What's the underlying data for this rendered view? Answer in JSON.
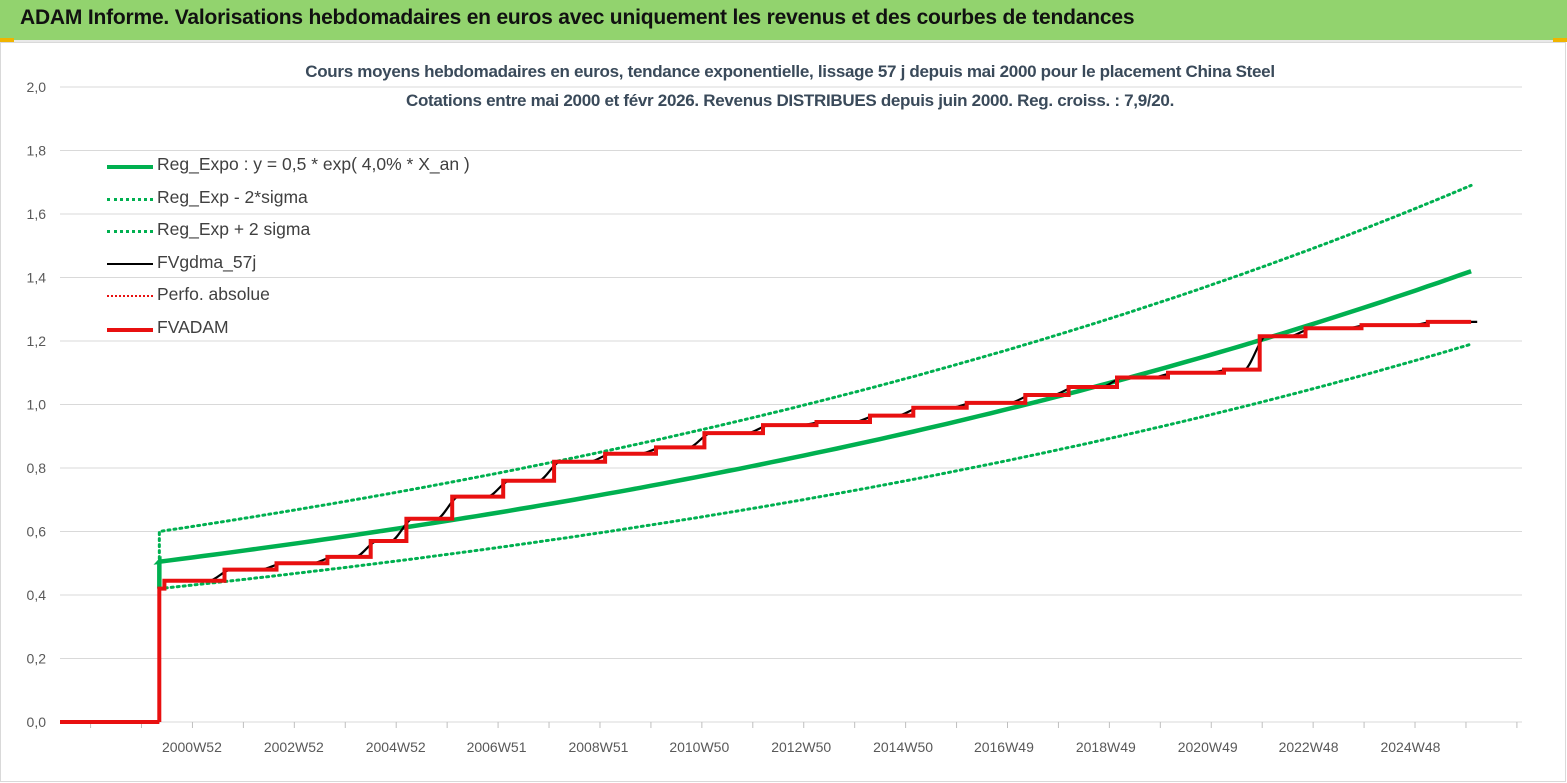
{
  "banner": {
    "title": "ADAM Informe. Valorisations hebdomadaires en euros avec uniquement les revenus et des courbes de tendances"
  },
  "colors": {
    "banner_bg": "#92d36e",
    "reg_expo": "#00b050",
    "fvgdma": "#000000",
    "fvadam": "#e81010",
    "perfo": "#e81010",
    "gridline": "#d9d9d9",
    "axis_text": "#595959"
  },
  "chart_data": {
    "type": "line",
    "title_line1": "Cours moyens hebdomadaires en euros, tendance exponentielle, lissage 57 j depuis mai 2000 pour le placement China Steel",
    "title_line2": "Cotations entre mai 2000 et févr 2026. Revenus DISTRIBUES depuis juin 2000. Reg. croiss. : 7,9/20.",
    "y_ticks": [
      "0,0",
      "0,2",
      "0,4",
      "0,6",
      "0,8",
      "1,0",
      "1,2",
      "1,4",
      "1,6",
      "1,8",
      "2,0"
    ],
    "ylim": [
      0,
      2.0
    ],
    "x_range": [
      1998.4,
      2027.1
    ],
    "x_ticks": [
      {
        "label": "2000W52",
        "x": 2000.99
      },
      {
        "label": "2002W52",
        "x": 2002.99
      },
      {
        "label": "2004W52",
        "x": 2004.99
      },
      {
        "label": "2006W51",
        "x": 2006.97
      },
      {
        "label": "2008W51",
        "x": 2008.97
      },
      {
        "label": "2010W50",
        "x": 2010.95
      },
      {
        "label": "2012W50",
        "x": 2012.95
      },
      {
        "label": "2014W50",
        "x": 2014.95
      },
      {
        "label": "2016W49",
        "x": 2016.93
      },
      {
        "label": "2018W49",
        "x": 2018.93
      },
      {
        "label": "2020W49",
        "x": 2020.93
      },
      {
        "label": "2022W48",
        "x": 2022.91
      },
      {
        "label": "2024W48",
        "x": 2024.91
      }
    ],
    "grid": true,
    "legend_position": "top-left",
    "start_x": 2000.35,
    "end_x": 2026.1,
    "series": [
      {
        "name": "Reg_Expo : y = 0,5 * exp( 4,0% *  X_an )",
        "style": "solid-thick",
        "color": "#00b050",
        "points": [
          [
            2000.35,
            0.505
          ],
          [
            2026.1,
            1.42
          ]
        ]
      },
      {
        "name": "Reg_Exp - 2*sigma",
        "style": "dotted",
        "color": "#00b050",
        "points": [
          [
            2000.35,
            0.42
          ],
          [
            2026.1,
            1.19
          ]
        ]
      },
      {
        "name": "Reg_Exp + 2 sigma",
        "style": "dotted",
        "color": "#00b050",
        "points": [
          [
            2000.35,
            0.6
          ],
          [
            2026.1,
            1.69
          ]
        ]
      },
      {
        "name": "FVgdma_57j",
        "style": "solid",
        "color": "#000000"
      },
      {
        "name": "Perfo. absolue",
        "style": "dotted-thin",
        "color": "#e81010"
      },
      {
        "name": "FVADAM",
        "style": "solid-thick",
        "color": "#e81010",
        "pre": [
          [
            1998.4,
            0.0
          ],
          [
            2000.35,
            0.0
          ]
        ],
        "steps": [
          [
            2000.35,
            0.42
          ],
          [
            2000.45,
            0.445
          ],
          [
            2001.63,
            0.48
          ],
          [
            2002.65,
            0.5
          ],
          [
            2003.65,
            0.52
          ],
          [
            2004.5,
            0.57
          ],
          [
            2005.2,
            0.64
          ],
          [
            2006.1,
            0.71
          ],
          [
            2007.1,
            0.76
          ],
          [
            2008.1,
            0.82
          ],
          [
            2009.1,
            0.845
          ],
          [
            2010.1,
            0.865
          ],
          [
            2011.05,
            0.91
          ],
          [
            2012.2,
            0.935
          ],
          [
            2013.25,
            0.945
          ],
          [
            2014.3,
            0.965
          ],
          [
            2015.15,
            0.99
          ],
          [
            2016.2,
            1.005
          ],
          [
            2017.35,
            1.03
          ],
          [
            2018.2,
            1.055
          ],
          [
            2019.15,
            1.085
          ],
          [
            2020.15,
            1.1
          ],
          [
            2021.25,
            1.11
          ],
          [
            2021.95,
            1.215
          ],
          [
            2022.85,
            1.24
          ],
          [
            2023.95,
            1.25
          ],
          [
            2025.25,
            1.26
          ],
          [
            2026.1,
            1.26
          ]
        ]
      }
    ]
  }
}
